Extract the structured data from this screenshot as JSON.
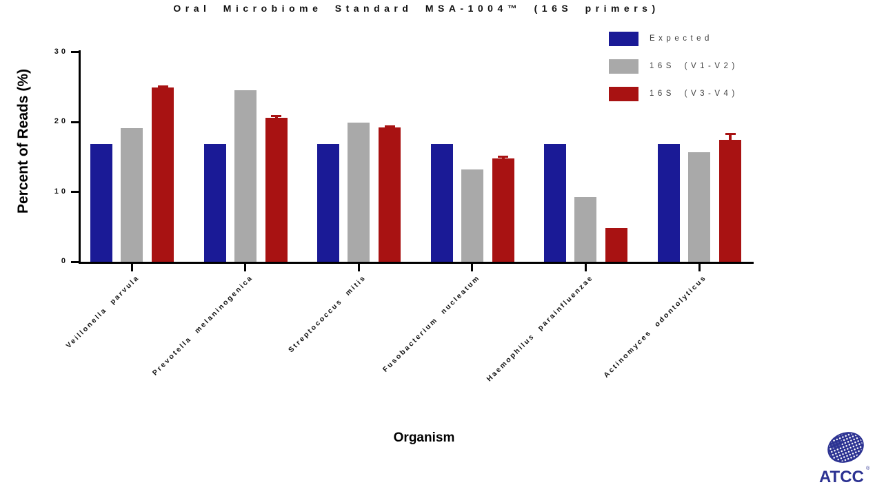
{
  "title": "Oral Microbiome Standard MSA-1004™  (16S primers)",
  "axes": {
    "y_label": "Percent of Reads (%)",
    "x_label": "Organism"
  },
  "legend": [
    {
      "label": "Expected",
      "color": "#1a1a96"
    },
    {
      "label": "16S (V1-V2)",
      "color": "#a9a9a9"
    },
    {
      "label": "16S (V3-V4)",
      "color": "#a81212"
    }
  ],
  "chart_data": {
    "type": "bar",
    "title": "Oral Microbiome Standard MSA-1004™ (16S primers)",
    "categories": [
      "Veillonella parvula",
      "Prevotella melaninogenica",
      "Streptococcus mitis",
      "Fusobacterium nucleatum",
      "Haemophilus parainfluenzae",
      "Actinomyces odontolyticus"
    ],
    "series": [
      {
        "name": "Expected",
        "color": "#1a1a96",
        "values": [
          16.9,
          16.9,
          16.9,
          16.9,
          16.9,
          16.9
        ],
        "errors": [
          0,
          0,
          0,
          0,
          0,
          0
        ]
      },
      {
        "name": "16S (V1-V2)",
        "color": "#a9a9a9",
        "values": [
          19.1,
          24.5,
          19.9,
          13.2,
          9.3,
          15.7
        ],
        "errors": [
          0,
          0,
          0,
          0,
          0,
          0
        ]
      },
      {
        "name": "16S (V3-V4)",
        "color": "#a81212",
        "values": [
          24.9,
          20.6,
          19.2,
          14.8,
          4.8,
          17.4
        ],
        "errors": [
          0.3,
          0.35,
          0.3,
          0.35,
          0,
          1.0
        ]
      }
    ],
    "xlabel": "Organism",
    "ylabel": "Percent of Reads (%)",
    "ylim": [
      0,
      30
    ],
    "yticks": [
      0,
      10,
      20,
      30
    ],
    "grid": false,
    "legend_position": "top-right",
    "error_bars": "upper caps on 16S (V3-V4) series"
  },
  "branding": {
    "logo_text": "ATCC",
    "registered_mark": "®",
    "logo_color": "#2c3292"
  }
}
